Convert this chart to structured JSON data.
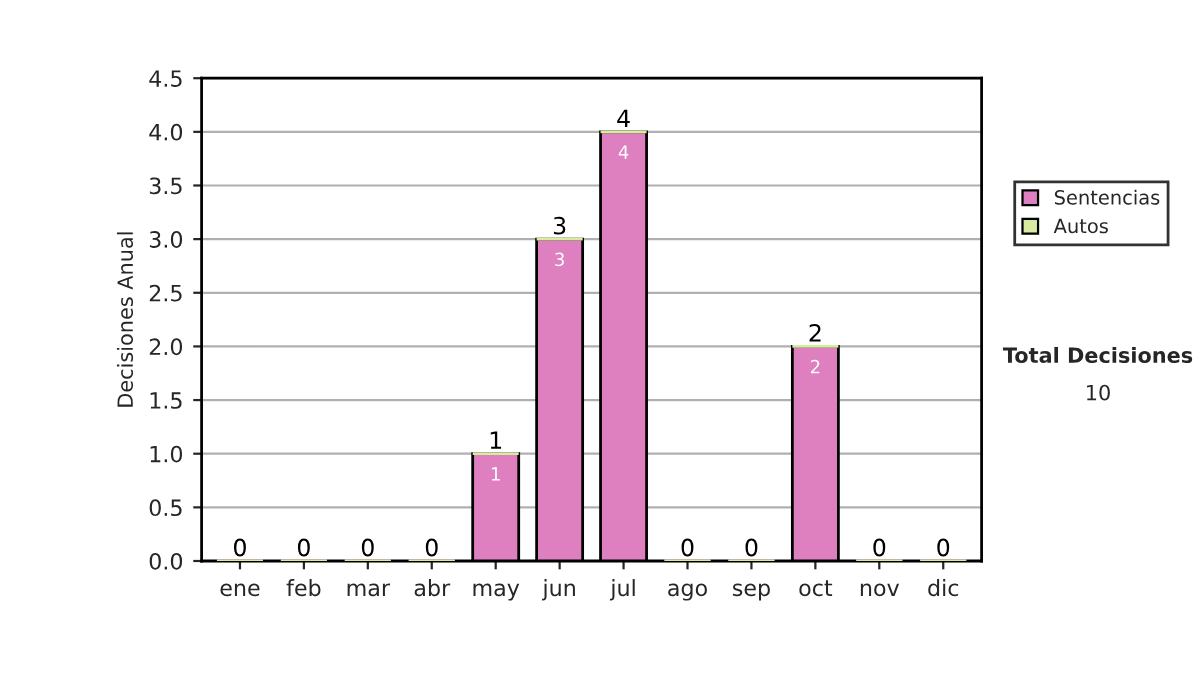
{
  "chart_data": {
    "type": "bar",
    "stacked": true,
    "categories": [
      "ene",
      "feb",
      "mar",
      "abr",
      "may",
      "jun",
      "jul",
      "ago",
      "sep",
      "oct",
      "nov",
      "dic"
    ],
    "series": [
      {
        "name": "Sentencias",
        "color": "#de80bf",
        "values": [
          0,
          0,
          0,
          0,
          1,
          3,
          4,
          0,
          0,
          2,
          0,
          0
        ],
        "value_labels": [
          null,
          null,
          null,
          null,
          "1",
          "3",
          "4",
          null,
          null,
          "2",
          null,
          null
        ]
      },
      {
        "name": "Autos",
        "color": "#d8eba0",
        "values": [
          0,
          0,
          0,
          0,
          0,
          0,
          0,
          0,
          0,
          0,
          0,
          0
        ]
      }
    ],
    "totals": [
      "0",
      "0",
      "0",
      "0",
      "1",
      "3",
      "4",
      "0",
      "0",
      "2",
      "0",
      "0"
    ],
    "ylabel": "Decisiones Anual",
    "ylim": [
      0,
      4.5
    ],
    "yticks": [
      {
        "value": 0,
        "label": "0.0"
      },
      {
        "value": 0.5,
        "label": "0.5"
      },
      {
        "value": 1,
        "label": "1.0"
      },
      {
        "value": 1.5,
        "label": "1.5"
      },
      {
        "value": 2,
        "label": "2.0"
      },
      {
        "value": 2.5,
        "label": "2.5"
      },
      {
        "value": 3,
        "label": "3.0"
      },
      {
        "value": 3.5,
        "label": "3.5"
      },
      {
        "value": 4,
        "label": "4.0"
      },
      {
        "value": 4.5,
        "label": "4.5"
      }
    ],
    "grid": "y",
    "legend": "right",
    "annotations": [
      "Total Decisiones",
      "10"
    ]
  }
}
